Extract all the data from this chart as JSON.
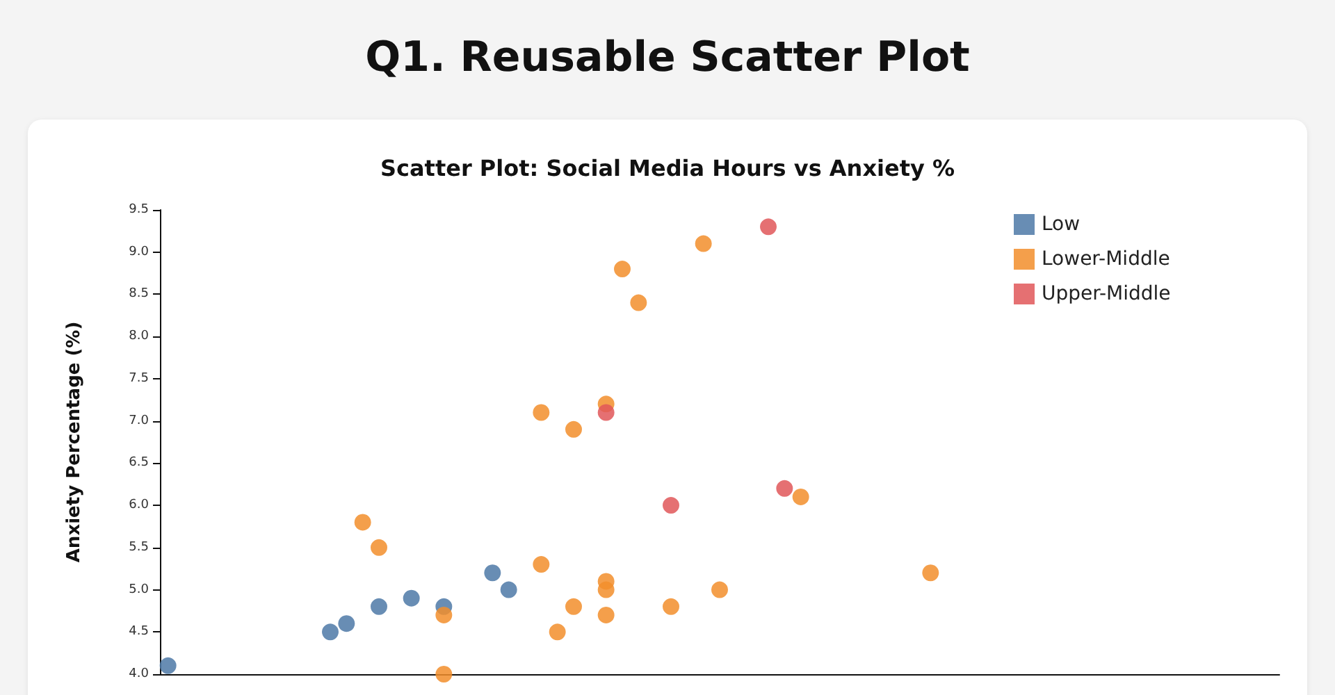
{
  "chart_data": {
    "type": "scatter",
    "title": "Scatter Plot: Social Media Hours vs Anxiety %",
    "ylabel": "Anxiety Percentage (%)",
    "categories": [
      null,
      null,
      null,
      null,
      null,
      null,
      null,
      null,
      null,
      null,
      null,
      null,
      null,
      null,
      null,
      null,
      null,
      null,
      null,
      null,
      null,
      null,
      null,
      null,
      null,
      null,
      null,
      null,
      null,
      null,
      null,
      null,
      null,
      null,
      null,
      null,
      null,
      null,
      null,
      null,
      null,
      null,
      null,
      null,
      null,
      null,
      null,
      null,
      null,
      null,
      null,
      null,
      null,
      null,
      null,
      null,
      null,
      null,
      null,
      null,
      null,
      null,
      null,
      null,
      null,
      null,
      null,
      null,
      null
    ],
    "ylim": [
      4.0,
      9.5
    ],
    "yticks": [
      {
        "value": 4.0,
        "label": "4.0"
      },
      {
        "value": 4.5,
        "label": "4.5"
      },
      {
        "value": 5.0,
        "label": "5.0"
      },
      {
        "value": 5.5,
        "label": "5.5"
      },
      {
        "value": 6.0,
        "label": "6.0"
      },
      {
        "value": 6.5,
        "label": "6.5"
      },
      {
        "value": 7.0,
        "label": "7.0"
      },
      {
        "value": 7.5,
        "label": "7.5"
      },
      {
        "value": 8.0,
        "label": "8.0"
      },
      {
        "value": 8.5,
        "label": "8.5"
      },
      {
        "value": 9.0,
        "label": "9.0"
      },
      {
        "value": 9.5,
        "label": "9.5"
      }
    ],
    "tick_labels": "y",
    "legend": "top right",
    "marker": "circle",
    "annotations": [
      "Q1. Reusable Scatter Plot"
    ],
    "series": [
      {
        "name": "Low",
        "color": "#4e79a7",
        "values": [
          4.1,
          null,
          null,
          null,
          null,
          null,
          null,
          null,
          null,
          null,
          4.5,
          4.6,
          null,
          4.8,
          null,
          4.9,
          null,
          4.8,
          null,
          null,
          5.2,
          5.0,
          null,
          null,
          null,
          null,
          null,
          null,
          null,
          null,
          null,
          null,
          null,
          null,
          null,
          null,
          null,
          null,
          null,
          null,
          null,
          null,
          null,
          null,
          null,
          null,
          null,
          null,
          null,
          null,
          null,
          null,
          null,
          null,
          null,
          null,
          null,
          null,
          null,
          null,
          null,
          null,
          null,
          null,
          null,
          null,
          null,
          null,
          null
        ]
      },
      {
        "name": "Lower-Middle",
        "color": "#f28e2b",
        "values": [
          null,
          null,
          null,
          null,
          null,
          null,
          null,
          null,
          null,
          null,
          null,
          null,
          5.8,
          5.5,
          null,
          null,
          null,
          4.7,
          null,
          null,
          null,
          null,
          null,
          5.3,
          4.5,
          4.8,
          null,
          5.0,
          8.8,
          8.4,
          null,
          4.8,
          null,
          9.1,
          5.0,
          null,
          null,
          null,
          null,
          6.1,
          null,
          null,
          null,
          null,
          null,
          null,
          null,
          5.2,
          null,
          null,
          null,
          null,
          null,
          null,
          null,
          null,
          null,
          null,
          null,
          null,
          null,
          null,
          null,
          null,
          null,
          null,
          null,
          null,
          null
        ]
      },
      {
        "color": "#f28e2b",
        "values": [
          null,
          null,
          null,
          null,
          null,
          null,
          null,
          null,
          null,
          null,
          null,
          null,
          null,
          null,
          null,
          null,
          null,
          4.0,
          null,
          null,
          null,
          null,
          null,
          7.1,
          null,
          6.9,
          null,
          7.2,
          null,
          null,
          null,
          null,
          null,
          null,
          null,
          null,
          null,
          null,
          null,
          null,
          null,
          null,
          null,
          null,
          null,
          null,
          null,
          null,
          null,
          null,
          null,
          null,
          null,
          null,
          null,
          null,
          null,
          null,
          null,
          null,
          null,
          null,
          null,
          null,
          null,
          null,
          null,
          null,
          null
        ]
      },
      {
        "color": "#f28e2b",
        "values": [
          null,
          null,
          null,
          null,
          null,
          null,
          null,
          null,
          null,
          null,
          null,
          null,
          null,
          null,
          null,
          null,
          null,
          null,
          null,
          null,
          null,
          null,
          null,
          null,
          null,
          null,
          null,
          5.1,
          null,
          null,
          null,
          null,
          null,
          null,
          null,
          null,
          null,
          null,
          null,
          null,
          null,
          null,
          null,
          null,
          null,
          null,
          null,
          null,
          null,
          null,
          null,
          null,
          null,
          null,
          null,
          null,
          null,
          null,
          null,
          null,
          null,
          null,
          null,
          null,
          null,
          null,
          null,
          null,
          null
        ]
      },
      {
        "color": "#f28e2b",
        "values": [
          null,
          null,
          null,
          null,
          null,
          null,
          null,
          null,
          null,
          null,
          null,
          null,
          null,
          null,
          null,
          null,
          null,
          null,
          null,
          null,
          null,
          null,
          null,
          null,
          null,
          null,
          null,
          4.7,
          null,
          null,
          null,
          null,
          null,
          null,
          null,
          null,
          null,
          null,
          null,
          null,
          null,
          null,
          null,
          null,
          null,
          null,
          null,
          null,
          null,
          null,
          null,
          null,
          null,
          null,
          null,
          null,
          null,
          null,
          null,
          null,
          null,
          null,
          null,
          null,
          null,
          null,
          null,
          null,
          null
        ]
      },
      {
        "name": "Upper-Middle",
        "color": "#e15759",
        "values": [
          null,
          null,
          null,
          null,
          null,
          null,
          null,
          null,
          null,
          null,
          null,
          null,
          null,
          null,
          null,
          null,
          null,
          null,
          null,
          null,
          null,
          null,
          null,
          null,
          null,
          null,
          null,
          7.1,
          null,
          null,
          null,
          6.0,
          null,
          null,
          null,
          null,
          null,
          9.3,
          6.2,
          null,
          null,
          null,
          null,
          null,
          null,
          null,
          null,
          null,
          null,
          null,
          null,
          null,
          null,
          null,
          null,
          null,
          null,
          null,
          null,
          null,
          null,
          null,
          null,
          null,
          null,
          null,
          null,
          null,
          null
        ]
      }
    ]
  }
}
